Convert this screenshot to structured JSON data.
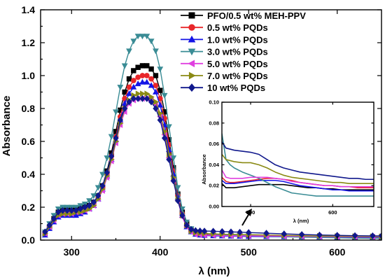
{
  "chart_data": [
    {
      "id": "main",
      "type": "line",
      "xlabel": "λ (nm)",
      "ylabel": "Absorbance",
      "xlim": [
        265,
        650
      ],
      "ylim": [
        0,
        1.4
      ],
      "xticks": [
        300,
        400,
        500,
        600
      ],
      "yticks": [
        0.0,
        0.2,
        0.4,
        0.6,
        0.8,
        1.0,
        1.2,
        1.4
      ],
      "x": [
        270,
        275,
        280,
        285,
        290,
        295,
        300,
        305,
        310,
        315,
        320,
        325,
        330,
        335,
        340,
        345,
        350,
        355,
        360,
        365,
        370,
        375,
        380,
        385,
        390,
        395,
        400,
        405,
        410,
        415,
        420,
        425,
        430,
        435,
        440,
        445,
        450,
        460,
        470,
        480,
        490,
        500,
        520,
        540,
        560,
        580,
        600,
        620,
        640,
        650
      ],
      "series": [
        {
          "name": "PFO/0.5 wt% MEH-PPV",
          "color": "#000000",
          "marker": "square",
          "values": [
            0.04,
            0.08,
            0.13,
            0.17,
            0.19,
            0.19,
            0.19,
            0.19,
            0.19,
            0.2,
            0.21,
            0.23,
            0.27,
            0.33,
            0.42,
            0.53,
            0.66,
            0.79,
            0.9,
            0.98,
            1.03,
            1.05,
            1.06,
            1.06,
            1.04,
            1.0,
            0.91,
            0.78,
            0.61,
            0.44,
            0.28,
            0.17,
            0.1,
            0.06,
            0.045,
            0.04,
            0.035,
            0.03,
            0.028,
            0.026,
            0.025,
            0.025,
            0.024,
            0.023,
            0.022,
            0.021,
            0.02,
            0.019,
            0.018,
            0.018
          ]
        },
        {
          "name": "0.5 wt% PQDs",
          "color": "#e8262a",
          "marker": "circle",
          "values": [
            0.04,
            0.08,
            0.12,
            0.16,
            0.17,
            0.17,
            0.17,
            0.17,
            0.18,
            0.19,
            0.2,
            0.22,
            0.26,
            0.32,
            0.4,
            0.51,
            0.63,
            0.75,
            0.86,
            0.93,
            0.97,
            0.99,
            1.0,
            1.0,
            0.98,
            0.94,
            0.86,
            0.74,
            0.58,
            0.42,
            0.27,
            0.16,
            0.09,
            0.055,
            0.04,
            0.035,
            0.032,
            0.03,
            0.028,
            0.027,
            0.026,
            0.026,
            0.025,
            0.024,
            0.023,
            0.022,
            0.021,
            0.02,
            0.019,
            0.019
          ]
        },
        {
          "name": "1.0 wt% PQDs",
          "color": "#1414e6",
          "marker": "triangle-up",
          "values": [
            0.03,
            0.07,
            0.11,
            0.14,
            0.15,
            0.15,
            0.15,
            0.15,
            0.16,
            0.17,
            0.19,
            0.21,
            0.25,
            0.31,
            0.39,
            0.49,
            0.61,
            0.73,
            0.83,
            0.89,
            0.93,
            0.95,
            0.96,
            0.96,
            0.94,
            0.9,
            0.82,
            0.7,
            0.55,
            0.4,
            0.26,
            0.15,
            0.08,
            0.05,
            0.035,
            0.03,
            0.028,
            0.026,
            0.025,
            0.024,
            0.023,
            0.022,
            0.021,
            0.02,
            0.019,
            0.018,
            0.017,
            0.016,
            0.015,
            0.015
          ]
        },
        {
          "name": "3.0 wt% PQDs",
          "color": "#3a8c95",
          "marker": "triangle-down",
          "values": [
            0.05,
            0.1,
            0.15,
            0.19,
            0.2,
            0.2,
            0.2,
            0.2,
            0.21,
            0.22,
            0.24,
            0.27,
            0.32,
            0.4,
            0.5,
            0.63,
            0.78,
            0.93,
            1.06,
            1.15,
            1.21,
            1.24,
            1.24,
            1.24,
            1.21,
            1.15,
            1.04,
            0.88,
            0.69,
            0.5,
            0.32,
            0.19,
            0.11,
            0.07,
            0.05,
            0.045,
            0.04,
            0.035,
            0.032,
            0.03,
            0.028,
            0.027,
            0.024,
            0.021,
            0.018,
            0.016,
            0.014,
            0.012,
            0.011,
            0.011
          ]
        },
        {
          "name": "5.0 wt% PQDs",
          "color": "#e040e0",
          "marker": "triangle-left",
          "values": [
            0.04,
            0.08,
            0.12,
            0.15,
            0.16,
            0.16,
            0.16,
            0.17,
            0.17,
            0.18,
            0.19,
            0.21,
            0.25,
            0.3,
            0.38,
            0.48,
            0.59,
            0.7,
            0.78,
            0.83,
            0.85,
            0.86,
            0.86,
            0.86,
            0.85,
            0.82,
            0.75,
            0.64,
            0.5,
            0.36,
            0.24,
            0.14,
            0.08,
            0.05,
            0.035,
            0.032,
            0.03,
            0.029,
            0.028,
            0.027,
            0.026,
            0.026,
            0.025,
            0.024,
            0.023,
            0.022,
            0.021,
            0.02,
            0.019,
            0.019
          ]
        },
        {
          "name": "7.0 wt% PQDs",
          "color": "#8a8a14",
          "marker": "triangle-right",
          "values": [
            0.04,
            0.08,
            0.12,
            0.15,
            0.16,
            0.16,
            0.16,
            0.17,
            0.17,
            0.18,
            0.19,
            0.21,
            0.25,
            0.31,
            0.39,
            0.49,
            0.6,
            0.71,
            0.8,
            0.85,
            0.88,
            0.89,
            0.89,
            0.89,
            0.87,
            0.84,
            0.77,
            0.66,
            0.52,
            0.38,
            0.25,
            0.15,
            0.09,
            0.055,
            0.045,
            0.042,
            0.04,
            0.038,
            0.036,
            0.035,
            0.034,
            0.033,
            0.031,
            0.029,
            0.027,
            0.025,
            0.024,
            0.023,
            0.022,
            0.022
          ]
        },
        {
          "name": "10  wt% PQDs",
          "color": "#10188c",
          "marker": "diamond",
          "values": [
            0.05,
            0.09,
            0.13,
            0.17,
            0.18,
            0.18,
            0.18,
            0.18,
            0.19,
            0.2,
            0.21,
            0.23,
            0.27,
            0.33,
            0.41,
            0.51,
            0.62,
            0.73,
            0.8,
            0.84,
            0.86,
            0.86,
            0.86,
            0.86,
            0.84,
            0.8,
            0.73,
            0.62,
            0.49,
            0.36,
            0.24,
            0.15,
            0.09,
            0.065,
            0.058,
            0.056,
            0.055,
            0.054,
            0.052,
            0.05,
            0.048,
            0.046,
            0.042,
            0.038,
            0.034,
            0.031,
            0.029,
            0.027,
            0.026,
            0.026
          ]
        }
      ]
    },
    {
      "id": "inset",
      "type": "line",
      "xlabel": "λ (nm)",
      "ylabel": "Absorbance",
      "xlim": [
        465,
        650
      ],
      "ylim": [
        0,
        0.1
      ],
      "xticks": [
        500,
        600
      ],
      "yticks": [
        0.0,
        0.02,
        0.04,
        0.06,
        0.08,
        0.1
      ],
      "x": [
        465,
        470,
        475,
        480,
        490,
        500,
        510,
        520,
        530,
        540,
        550,
        560,
        570,
        580,
        590,
        600,
        610,
        620,
        630,
        640,
        650
      ],
      "series": [
        {
          "name": "PFO/0.5 wt% MEH-PPV",
          "color": "#000000",
          "values": [
            0.022,
            0.018,
            0.018,
            0.018,
            0.019,
            0.02,
            0.021,
            0.021,
            0.021,
            0.021,
            0.02,
            0.019,
            0.018,
            0.018,
            0.017,
            0.017,
            0.016,
            0.016,
            0.016,
            0.016,
            0.016
          ]
        },
        {
          "name": "0.5 wt% PQDs",
          "color": "#e8262a",
          "values": [
            0.028,
            0.024,
            0.023,
            0.023,
            0.024,
            0.025,
            0.026,
            0.027,
            0.027,
            0.026,
            0.025,
            0.023,
            0.022,
            0.021,
            0.02,
            0.02,
            0.019,
            0.019,
            0.018,
            0.018,
            0.018
          ]
        },
        {
          "name": "1.0 wt% PQDs",
          "color": "#1414e6",
          "values": [
            0.025,
            0.022,
            0.022,
            0.022,
            0.023,
            0.024,
            0.025,
            0.025,
            0.025,
            0.024,
            0.022,
            0.02,
            0.019,
            0.018,
            0.017,
            0.016,
            0.016,
            0.015,
            0.015,
            0.015,
            0.015
          ]
        },
        {
          "name": "3.0 wt% PQDs",
          "color": "#3a8c95",
          "values": [
            0.07,
            0.045,
            0.04,
            0.037,
            0.033,
            0.03,
            0.027,
            0.023,
            0.019,
            0.016,
            0.013,
            0.012,
            0.011,
            0.01,
            0.01,
            0.01,
            0.01,
            0.01,
            0.01,
            0.01,
            0.01
          ]
        },
        {
          "name": "5.0 wt% PQDs",
          "color": "#e040e0",
          "values": [
            0.035,
            0.028,
            0.027,
            0.027,
            0.027,
            0.028,
            0.028,
            0.028,
            0.027,
            0.026,
            0.024,
            0.023,
            0.022,
            0.021,
            0.02,
            0.02,
            0.019,
            0.019,
            0.019,
            0.019,
            0.019
          ]
        },
        {
          "name": "7.0 wt% PQDs",
          "color": "#8a8a14",
          "values": [
            0.05,
            0.045,
            0.044,
            0.043,
            0.042,
            0.042,
            0.04,
            0.037,
            0.033,
            0.03,
            0.028,
            0.027,
            0.026,
            0.025,
            0.024,
            0.023,
            0.023,
            0.022,
            0.022,
            0.022,
            0.022
          ]
        },
        {
          "name": "10  wt% PQDs",
          "color": "#10188c",
          "values": [
            0.062,
            0.056,
            0.055,
            0.054,
            0.053,
            0.052,
            0.05,
            0.045,
            0.04,
            0.037,
            0.035,
            0.033,
            0.032,
            0.031,
            0.03,
            0.029,
            0.028,
            0.027,
            0.027,
            0.026,
            0.026
          ]
        }
      ]
    }
  ]
}
